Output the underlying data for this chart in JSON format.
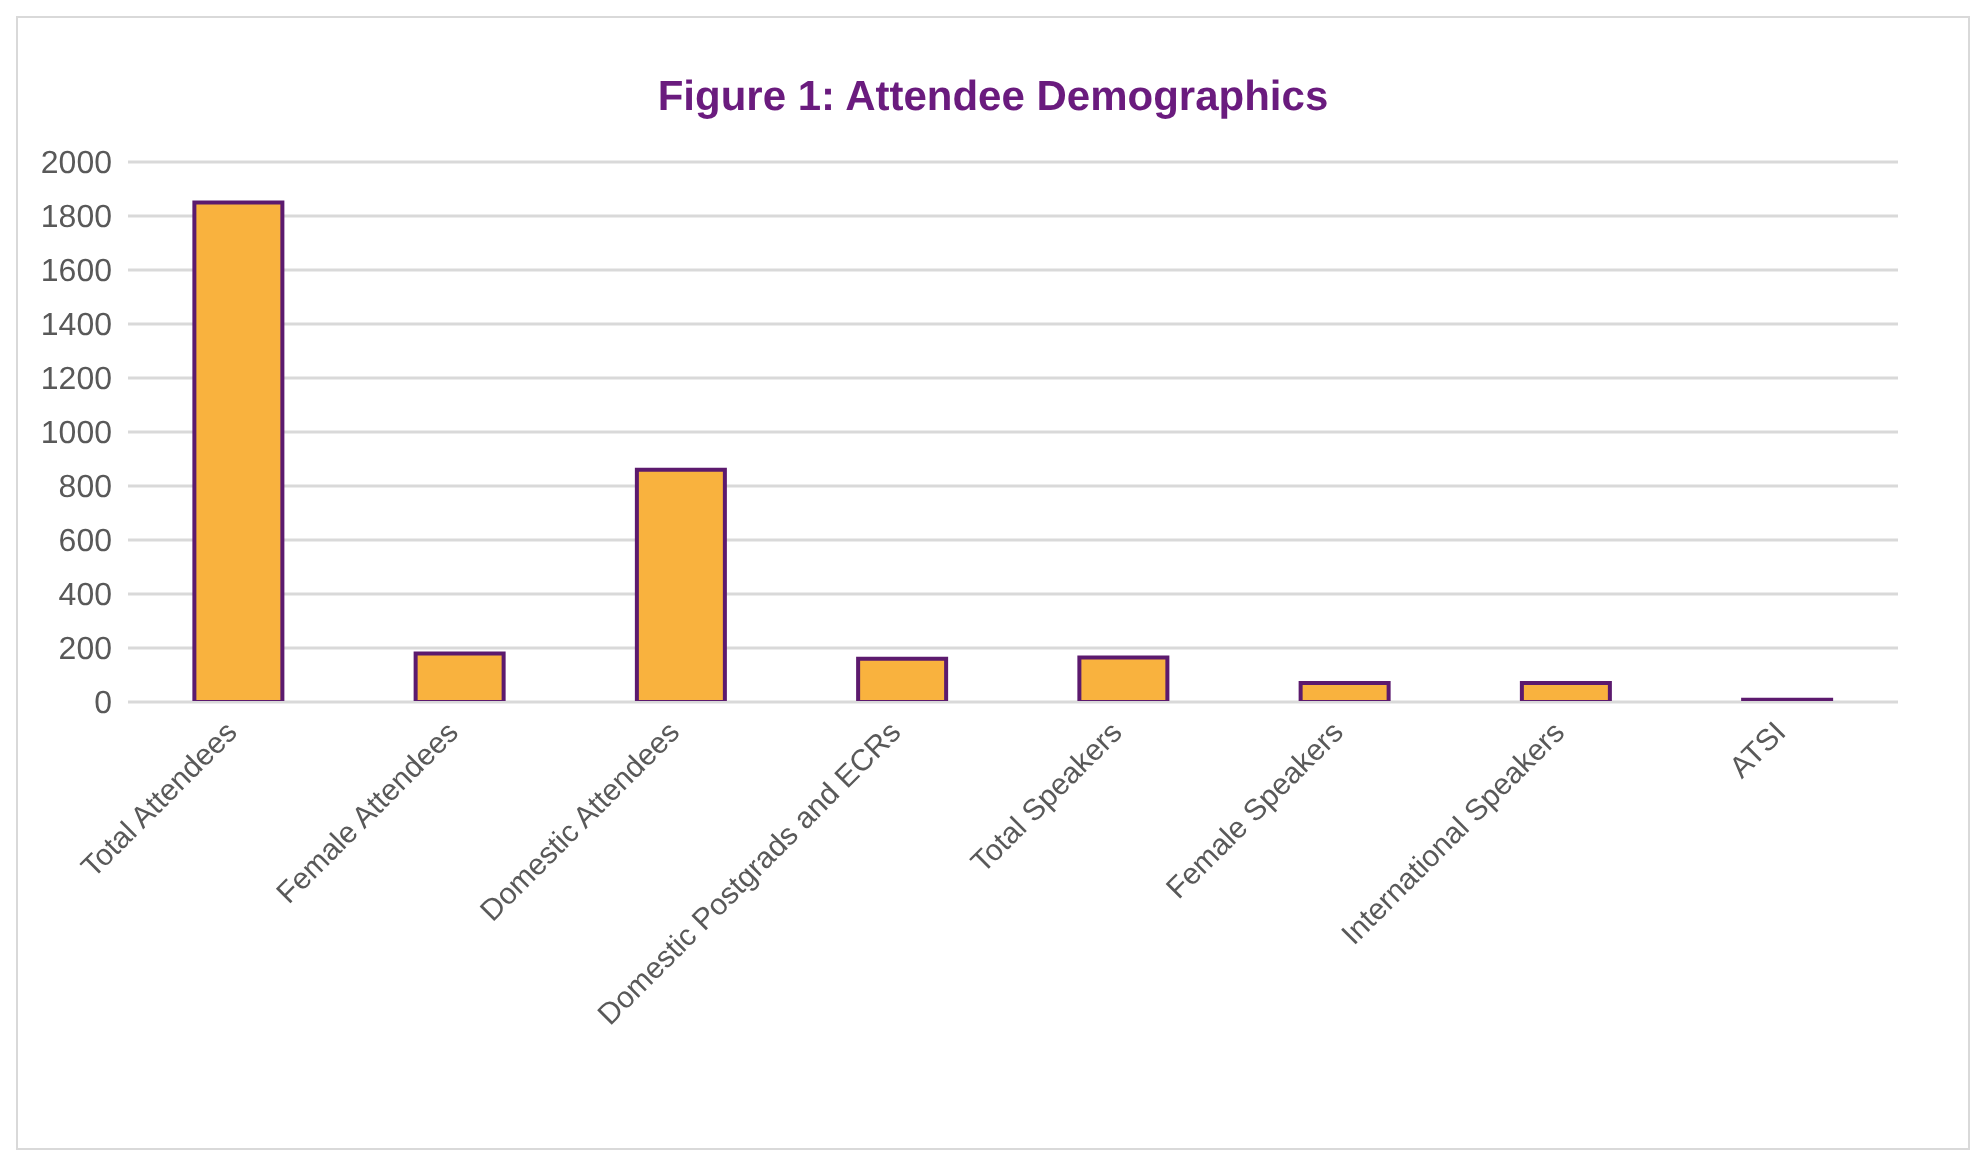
{
  "chart_data": {
    "type": "bar",
    "title": "Figure 1: Attendee Demographics",
    "categories": [
      "Total Attendees",
      "Female Attendees",
      "Domestic Attendees",
      "Domestic Postgrads and ECRs",
      "Total Speakers",
      "Female Speakers",
      "International Speakers",
      "ATSI"
    ],
    "values": [
      1850,
      180,
      860,
      160,
      165,
      70,
      70,
      8
    ],
    "color": "#f9b23e",
    "ylim": [
      0,
      2000
    ],
    "yticks": [
      0,
      200,
      400,
      600,
      800,
      1000,
      1200,
      1400,
      1600,
      1800,
      2000
    ],
    "grid": "y"
  }
}
